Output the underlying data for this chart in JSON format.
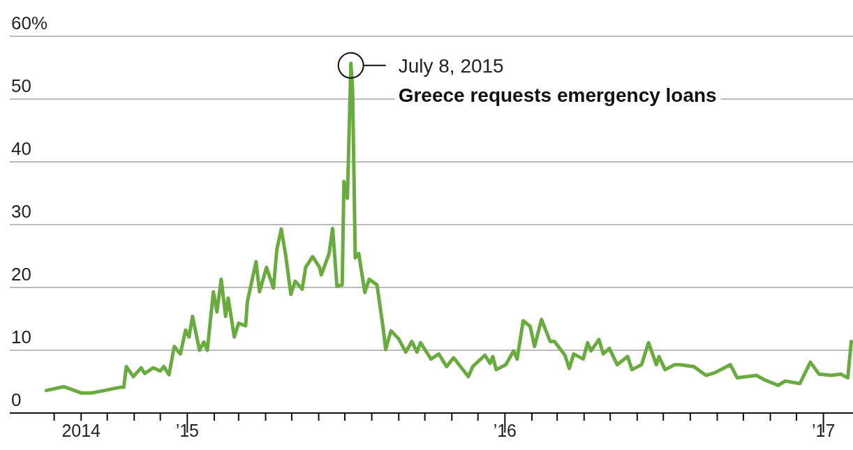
{
  "chart_data": {
    "type": "line",
    "color": "#6aab40",
    "line_style": "solid",
    "grid": "y",
    "x": [
      "2014-07-23",
      "2014-08-12",
      "2014-09-01",
      "2014-09-13",
      "2014-09-28",
      "2014-10-16",
      "2014-10-20",
      "2014-10-23",
      "2014-10-31",
      "2014-11-09",
      "2014-11-13",
      "2014-11-23",
      "2014-12-01",
      "2014-12-05",
      "2014-12-11",
      "2014-12-17",
      "2014-12-24",
      "2014-12-30",
      "2015-01-03",
      "2015-01-07",
      "2015-01-15",
      "2015-01-20",
      "2015-01-24",
      "2015-01-31",
      "2015-02-04",
      "2015-02-09",
      "2015-02-14",
      "2015-02-17",
      "2015-02-24",
      "2015-03-01",
      "2015-03-09",
      "2015-03-11",
      "2015-03-21",
      "2015-03-25",
      "2015-04-02",
      "2015-04-10",
      "2015-04-14",
      "2015-04-19",
      "2015-04-24",
      "2015-04-30",
      "2015-05-05",
      "2015-05-13",
      "2015-05-17",
      "2015-05-25",
      "2015-06-02",
      "2015-06-04",
      "2015-06-13",
      "2015-06-17",
      "2015-06-22",
      "2015-06-28",
      "2015-06-30",
      "2015-07-04",
      "2015-07-08",
      "2015-07-10",
      "2015-07-13",
      "2015-07-17",
      "2015-07-24",
      "2015-07-29",
      "2015-08-07",
      "2015-08-14",
      "2015-08-17",
      "2015-08-23",
      "2015-09-01",
      "2015-09-09",
      "2015-09-16",
      "2015-09-22",
      "2015-09-26",
      "2015-10-08",
      "2015-10-17",
      "2015-10-26",
      "2015-11-03",
      "2015-11-20",
      "2015-11-25",
      "2015-12-09",
      "2015-12-15",
      "2015-12-18",
      "2015-12-22",
      "2016-01-02",
      "2016-01-11",
      "2016-01-15",
      "2016-01-22",
      "2016-01-30",
      "2016-02-04",
      "2016-02-12",
      "2016-02-22",
      "2016-02-27",
      "2016-03-10",
      "2016-03-15",
      "2016-03-20",
      "2016-03-31",
      "2016-04-05",
      "2016-04-09",
      "2016-04-18",
      "2016-04-23",
      "2016-04-30",
      "2016-05-09",
      "2016-05-21",
      "2016-05-26",
      "2016-06-06",
      "2016-06-14",
      "2016-06-23",
      "2016-06-26",
      "2016-07-03",
      "2016-07-14",
      "2016-07-20",
      "2016-08-05",
      "2016-08-19",
      "2016-08-29",
      "2016-09-16",
      "2016-09-24",
      "2016-10-16",
      "2016-10-25",
      "2016-11-10",
      "2016-11-18",
      "2016-11-26",
      "2016-12-05",
      "2016-12-17",
      "2016-12-27",
      "2017-01-10",
      "2017-01-21",
      "2017-01-29",
      "2017-02-02"
    ],
    "values": [
      3.6,
      4.2,
      3.2,
      3.2,
      3.6,
      4.1,
      4.1,
      7.4,
      5.8,
      7.2,
      6.3,
      7.2,
      6.7,
      7.4,
      6.1,
      10.6,
      9.4,
      13.2,
      12.1,
      15.4,
      10,
      11.3,
      10,
      19.3,
      16.1,
      21.3,
      15.4,
      18.3,
      12.1,
      14.3,
      13.9,
      17.7,
      24.1,
      19.3,
      23.2,
      19.9,
      26.1,
      29.3,
      25.2,
      18.9,
      21,
      19.7,
      23.2,
      24.9,
      23.2,
      22,
      25.4,
      29.4,
      20.2,
      20.4,
      36.9,
      34.2,
      55.7,
      51.4,
      24.7,
      25.4,
      19.2,
      21.3,
      20.4,
      13.6,
      10.1,
      13.1,
      11.8,
      9.7,
      11.4,
      9.7,
      11.2,
      8.6,
      9.4,
      7.4,
      8.8,
      5.8,
      7.4,
      9.2,
      7.9,
      9,
      6.9,
      7.7,
      9.9,
      8.6,
      14.7,
      13.8,
      10.6,
      14.9,
      11.4,
      11.4,
      9.2,
      7.1,
      9.4,
      8.6,
      11.2,
      9.9,
      11.7,
      9.4,
      10.3,
      7.7,
      9,
      6.9,
      7.7,
      11.2,
      7.7,
      9,
      6.9,
      7.7,
      7.7,
      7.4,
      6,
      6.4,
      7.7,
      5.6,
      6,
      5.3,
      4.4,
      5.1,
      4.9,
      4.7,
      8.1,
      6.2,
      6,
      6.2,
      5.6,
      11.4
    ],
    "xlim": [
      "2014-06-11",
      "2017-02-04"
    ],
    "xticks": [
      {
        "value": "2014-08",
        "label": null
      },
      {
        "value": "2014-09",
        "label": "2014"
      },
      {
        "value": "2014-10",
        "label": null
      },
      {
        "value": "2014-11",
        "label": null
      },
      {
        "value": "2014-12",
        "label": null
      },
      {
        "value": "2015-01",
        "label": "’15"
      },
      {
        "value": "2015-02",
        "label": null
      },
      {
        "value": "2015-03",
        "label": null
      },
      {
        "value": "2015-04",
        "label": null
      },
      {
        "value": "2015-05",
        "label": null
      },
      {
        "value": "2015-06",
        "label": null
      },
      {
        "value": "2015-07",
        "label": null
      },
      {
        "value": "2015-08",
        "label": null
      },
      {
        "value": "2015-09",
        "label": null
      },
      {
        "value": "2015-10",
        "label": null
      },
      {
        "value": "2015-11",
        "label": null
      },
      {
        "value": "2015-12",
        "label": null
      },
      {
        "value": "2016-01",
        "label": "’16"
      },
      {
        "value": "2016-02",
        "label": null
      },
      {
        "value": "2016-03",
        "label": null
      },
      {
        "value": "2016-04",
        "label": null
      },
      {
        "value": "2016-05",
        "label": null
      },
      {
        "value": "2016-06",
        "label": null
      },
      {
        "value": "2016-07",
        "label": null
      },
      {
        "value": "2016-08",
        "label": null
      },
      {
        "value": "2016-09",
        "label": null
      },
      {
        "value": "2016-10",
        "label": null
      },
      {
        "value": "2016-11",
        "label": null
      },
      {
        "value": "2016-12",
        "label": null
      },
      {
        "value": "2017-01",
        "label": "’17"
      }
    ],
    "ylim": [
      0,
      60
    ],
    "yticks": [
      0,
      10,
      20,
      30,
      40,
      50,
      {
        "value": 60,
        "label": "60%"
      }
    ],
    "annotations": [
      {
        "text": "July 8, 2015",
        "x": "2015-07-08",
        "y": 55.7
      },
      "Greece requests emergency loans"
    ]
  }
}
